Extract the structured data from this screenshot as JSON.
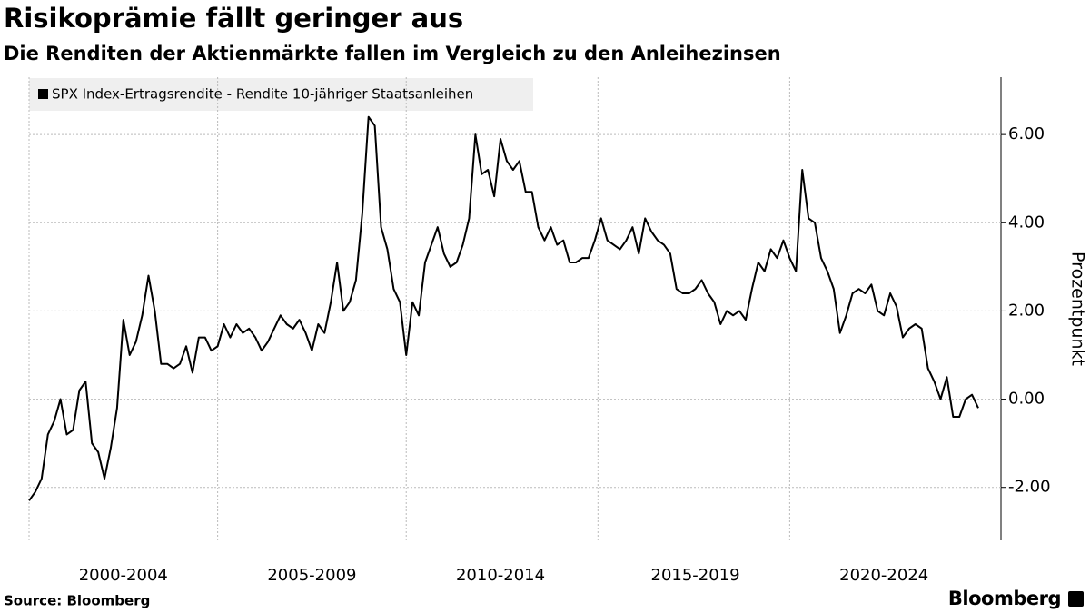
{
  "chart_data": {
    "type": "line",
    "title": "Risikoprämie fällt geringer aus",
    "subtitle": "Die Renditen der Aktienmärkte fallen im Vergleich zu den Anleihezinsen",
    "y_axis_label": "Prozentpunkt",
    "source": "Source: Bloomberg",
    "brand": "Bloomberg",
    "ylim": [
      -3.2,
      7.3
    ],
    "yticks": [
      {
        "value": -2,
        "label": "-2.00"
      },
      {
        "value": 0,
        "label": "0.00"
      },
      {
        "value": 2,
        "label": "2.00"
      },
      {
        "value": 4,
        "label": "4.00"
      },
      {
        "value": 6,
        "label": "6.00"
      }
    ],
    "grid": true,
    "legend": "top-left",
    "categories": [
      null,
      null,
      null,
      null,
      null,
      null,
      null,
      null,
      null,
      null,
      null,
      null,
      null,
      null,
      null,
      "2000-2004",
      null,
      null,
      null,
      null,
      null,
      null,
      null,
      null,
      null,
      null,
      null,
      null,
      null,
      null,
      null,
      null,
      null,
      null,
      null,
      null,
      null,
      null,
      null,
      null,
      null,
      null,
      null,
      null,
      null,
      "2005-2009",
      null,
      null,
      null,
      null,
      null,
      null,
      null,
      null,
      null,
      null,
      null,
      null,
      null,
      null,
      null,
      null,
      null,
      null,
      null,
      null,
      null,
      null,
      null,
      null,
      null,
      null,
      null,
      null,
      null,
      "2010-2014",
      null,
      null,
      null,
      null,
      null,
      null,
      null,
      null,
      null,
      null,
      null,
      null,
      null,
      null,
      null,
      null,
      null,
      null,
      null,
      null,
      null,
      null,
      null,
      null,
      null,
      null,
      null,
      null,
      null,
      null,
      "2015-2019",
      null,
      null,
      null,
      null,
      null,
      null,
      null,
      null,
      null,
      null,
      null,
      null,
      null,
      null,
      null,
      null,
      null,
      null,
      null,
      null,
      null,
      null,
      null,
      null,
      null,
      null,
      null,
      null,
      null,
      "2020-2024",
      null,
      null,
      null,
      null,
      null,
      null,
      null,
      null,
      null,
      null,
      null,
      null,
      null,
      null,
      null
    ],
    "series": [
      {
        "name": "SPX Index-Ertragsrendite - Rendite 10-jähriger Staatsanleihen",
        "color": "#000000",
        "values": [
          -2.3,
          -2.1,
          -1.8,
          -0.8,
          -0.5,
          0,
          -0.8,
          -0.7,
          0.2,
          0.4,
          -1.0,
          -1.2,
          -1.8,
          -1.1,
          -0.2,
          1.8,
          1.0,
          1.3,
          1.9,
          2.8,
          2.0,
          0.8,
          0.8,
          0.7,
          0.8,
          1.2,
          0.6,
          1.4,
          1.4,
          1.1,
          1.2,
          1.7,
          1.4,
          1.7,
          1.5,
          1.6,
          1.4,
          1.1,
          1.3,
          1.6,
          1.9,
          1.7,
          1.6,
          1.8,
          1.5,
          1.1,
          1.7,
          1.5,
          2.2,
          3.1,
          2.0,
          2.2,
          2.7,
          4.2,
          6.4,
          6.2,
          3.9,
          3.4,
          2.5,
          2.2,
          1.0,
          2.2,
          1.9,
          3.1,
          3.5,
          3.9,
          3.3,
          3.0,
          3.1,
          3.5,
          4.1,
          6.0,
          5.1,
          5.2,
          4.6,
          5.9,
          5.4,
          5.2,
          5.4,
          4.7,
          4.7,
          3.9,
          3.6,
          3.9,
          3.5,
          3.6,
          3.1,
          3.1,
          3.2,
          3.2,
          3.6,
          4.1,
          3.6,
          3.5,
          3.4,
          3.6,
          3.9,
          3.3,
          4.1,
          3.8,
          3.6,
          3.5,
          3.3,
          2.5,
          2.4,
          2.4,
          2.5,
          2.7,
          2.4,
          2.2,
          1.7,
          2.0,
          1.9,
          2.0,
          1.8,
          2.5,
          3.1,
          2.9,
          3.4,
          3.2,
          3.6,
          3.2,
          2.9,
          5.2,
          4.1,
          4.0,
          3.2,
          2.9,
          2.5,
          1.5,
          1.9,
          2.4,
          2.5,
          2.4,
          2.6,
          2.0,
          1.9,
          2.4,
          2.1,
          1.4,
          1.6,
          1.7,
          1.6,
          0.7,
          0.4,
          0.0,
          0.5,
          -0.4,
          -0.4,
          0.0,
          0.1,
          -0.2
        ]
      }
    ]
  }
}
